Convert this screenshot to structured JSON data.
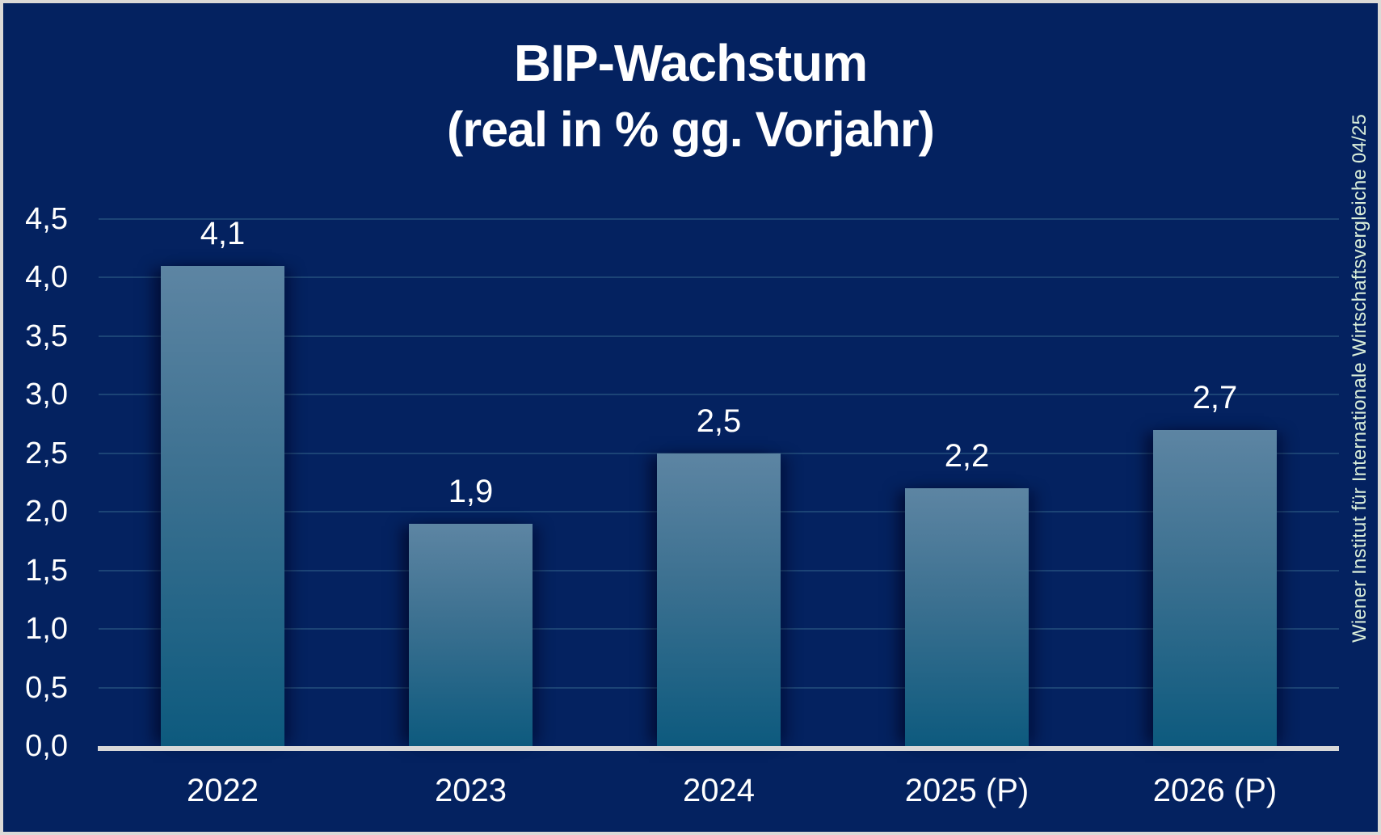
{
  "title": {
    "line1": "BIP-Wachstum",
    "line2": "(real in % gg. Vorjahr)"
  },
  "attribution": "Wiener Institut für Internationale Wirtschaftsvergleiche 04/25",
  "colors": {
    "background": "#042260",
    "frame_border": "#dcdad7",
    "bar_gradient_top": "#5d85a3",
    "bar_gradient_bottom": "#0d5a7e",
    "axis_line": "#d8d8d8",
    "gridline": "rgba(86,150,170,0.30)",
    "label_text": "#ffffff",
    "attribution_text": "#d9edd9"
  },
  "chart_data": {
    "type": "bar",
    "title": "BIP-Wachstum (real in % gg. Vorjahr)",
    "categories": [
      "2022",
      "2023",
      "2024",
      "2025 (P)",
      "2026 (P)"
    ],
    "values": [
      4.1,
      1.9,
      2.5,
      2.2,
      2.7
    ],
    "value_labels": [
      "4,1",
      "1,9",
      "2,5",
      "2,2",
      "2,7"
    ],
    "xlabel": "",
    "ylabel": "",
    "ylim": [
      0,
      4.5
    ],
    "y_tick_step": 0.5,
    "y_tick_labels": [
      "0,0",
      "0,5",
      "1,0",
      "1,5",
      "2,0",
      "2,5",
      "3,0",
      "3,5",
      "4,0",
      "4,5"
    ],
    "decimal_style": "comma",
    "grid": "horizontal",
    "legend": "none"
  }
}
